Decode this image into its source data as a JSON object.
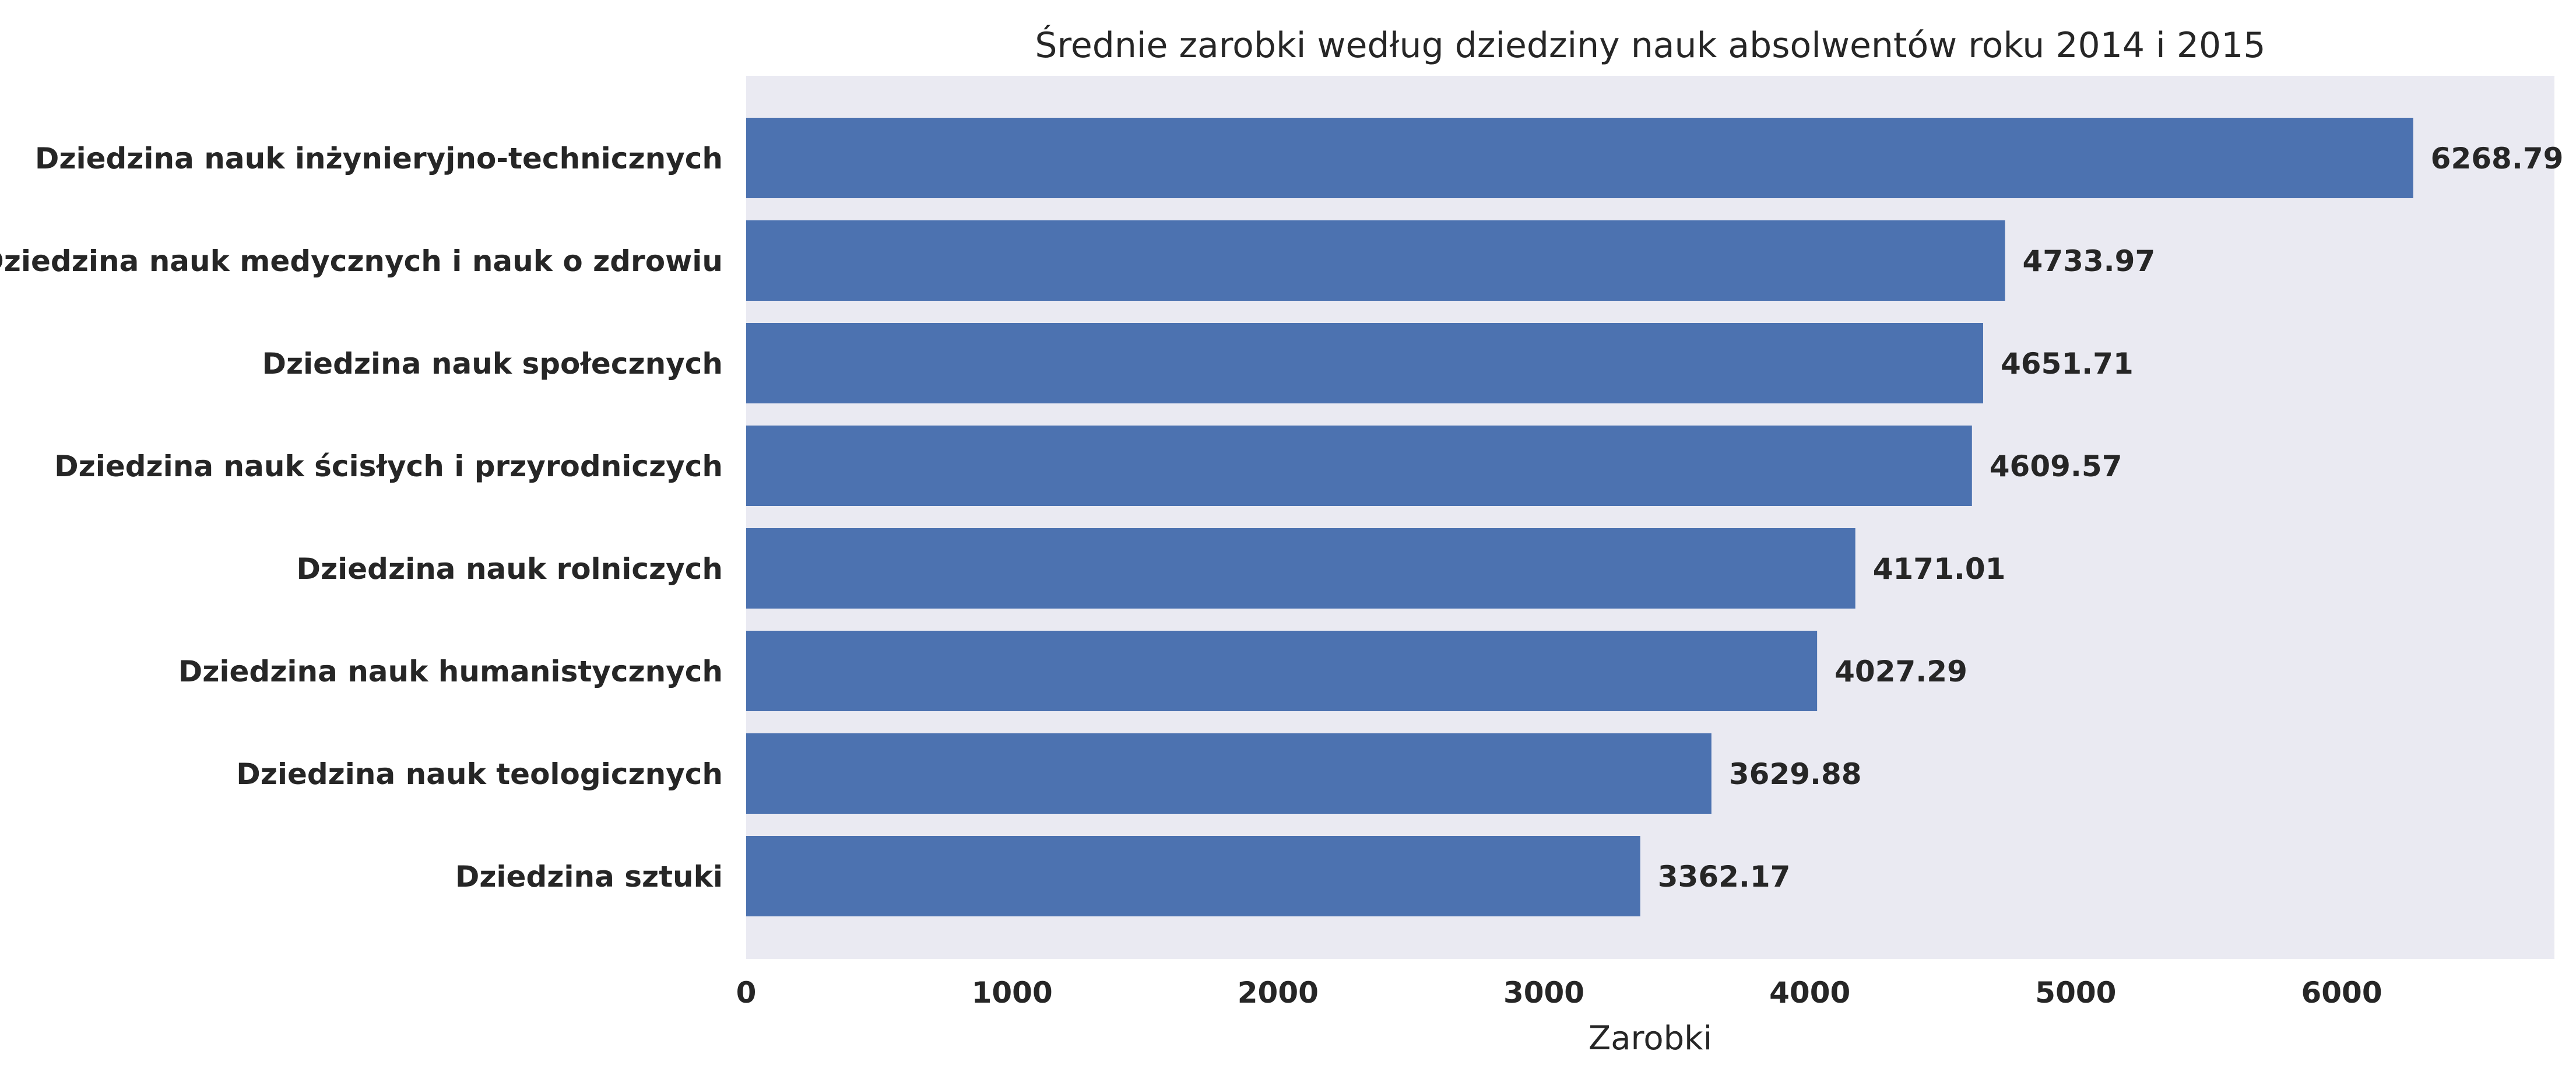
{
  "chart_data": {
    "type": "bar",
    "orientation": "horizontal",
    "title": "Średnie zarobki według dziedziny nauk absolwentów roku 2014 i 2015",
    "xlabel": "Zarobki",
    "ylabel": "",
    "categories": [
      "Dziedzina nauk inżynieryjno-technicznych",
      "Dziedzina nauk medycznych i nauk o zdrowiu",
      "Dziedzina nauk społecznych",
      "Dziedzina nauk ścisłych i przyrodniczych",
      "Dziedzina nauk rolniczych",
      "Dziedzina nauk humanistycznych",
      "Dziedzina nauk teologicznych",
      "Dziedzina sztuki"
    ],
    "values": [
      6268.79,
      4733.97,
      4651.71,
      4609.57,
      4171.01,
      4027.29,
      3629.88,
      3362.17
    ],
    "value_labels": [
      "6268.79",
      "4733.97",
      "4651.71",
      "4609.57",
      "4171.01",
      "4027.29",
      "3629.88",
      "3362.17"
    ],
    "xticks": [
      "0",
      "1000",
      "2000",
      "3000",
      "4000",
      "5000",
      "6000"
    ],
    "xlim": [
      0,
      6800
    ],
    "grid": false,
    "colors": {
      "bar": "#4c72b0",
      "plot_background": "#eaeaf2"
    }
  }
}
